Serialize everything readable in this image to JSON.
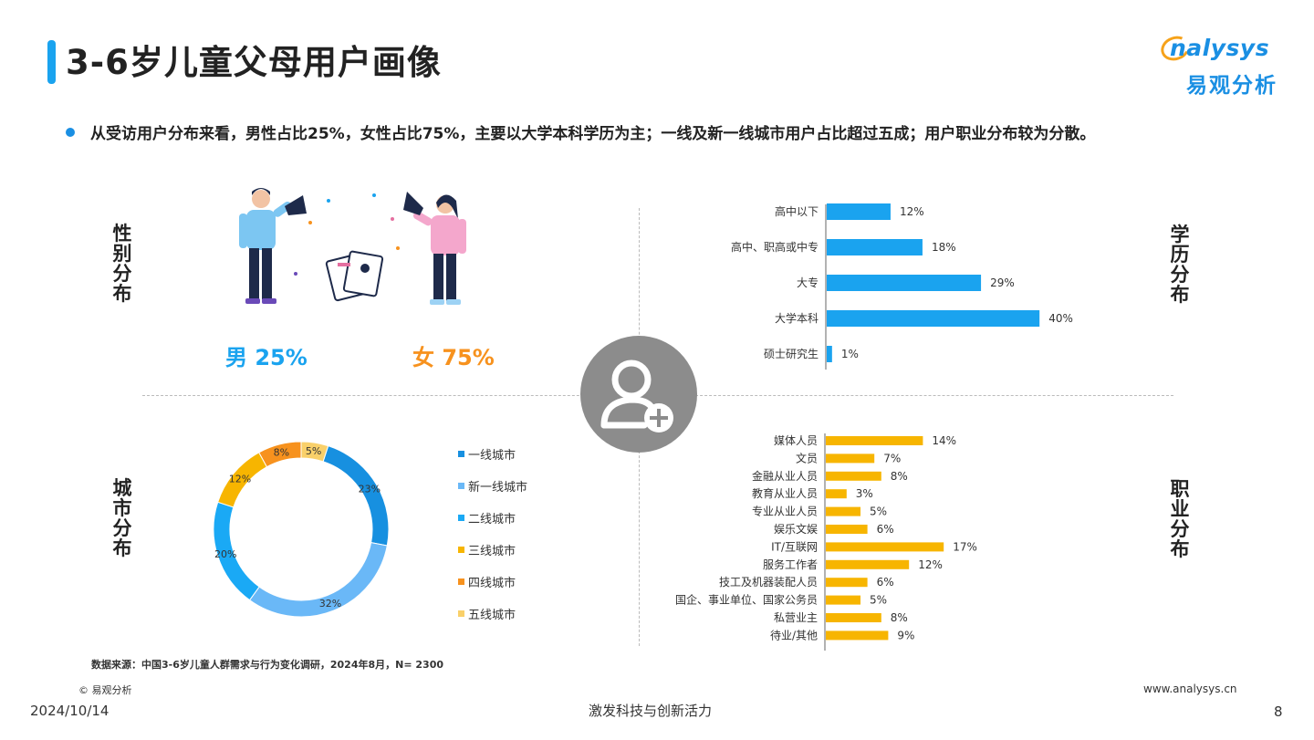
{
  "header": {
    "title": "3-6岁儿童父母用户画像",
    "logo_en": "nalysys",
    "logo_cn": "易观分析"
  },
  "summary": {
    "text": "从受访用户分布来看，男性占比25%，女性占比75%，主要以大学本科学历为主；一线及新一线城市用户占比超过五成；用户职业分布较为分散。"
  },
  "sections": {
    "gender": "性别分布",
    "education": "学历分布",
    "city": "城市分布",
    "occupation": "职业分布"
  },
  "gender_labels": {
    "male": "男  25%",
    "female": "女  75%"
  },
  "colors": {
    "accent_blue": "#1aa3ef",
    "accent_orange": "#f7921e",
    "bar_yellow": "#f7b500",
    "center_gray": "#8c8c8c"
  },
  "chart_data": [
    {
      "type": "bar",
      "orientation": "horizontal",
      "categories": [
        "高中以下",
        "高中、职高或中专",
        "大专",
        "大学本科",
        "硕士研究生"
      ],
      "values": [
        12,
        18,
        29,
        40,
        1
      ],
      "value_labels": [
        "12%",
        "18%",
        "29%",
        "40%",
        "1%"
      ],
      "color": "#1aa3ef"
    },
    {
      "type": "pie",
      "donut": true,
      "categories": [
        "一线城市",
        "新一线城市",
        "二线城市",
        "三线城市",
        "四线城市",
        "五线城市"
      ],
      "values": [
        23,
        32,
        20,
        12,
        8,
        5
      ],
      "value_labels": [
        "23%",
        "32%",
        "20%",
        "12%",
        "8%",
        "5%"
      ],
      "colors": [
        "#1790e0",
        "#6ab8f7",
        "#1aa9f5",
        "#f7b500",
        "#f7921e",
        "#f9d06a"
      ],
      "legend_position": "right"
    },
    {
      "type": "bar",
      "orientation": "horizontal",
      "categories": [
        "媒体人员",
        "文员",
        "金融从业人员",
        "教育从业人员",
        "专业从业人员",
        "娱乐文娱",
        "IT/互联网",
        "服务工作者",
        "技工及机器装配人员",
        "国企、事业单位、国家公务员",
        "私营业主",
        "待业/其他"
      ],
      "values": [
        14,
        7,
        8,
        3,
        5,
        6,
        17,
        12,
        6,
        5,
        8,
        9
      ],
      "value_labels": [
        "14%",
        "7%",
        "8%",
        "3%",
        "5%",
        "6%",
        "17%",
        "12%",
        "6%",
        "5%",
        "8%",
        "9%"
      ],
      "color": "#f7b500"
    }
  ],
  "footer": {
    "source": "数据来源：中国3-6岁儿童人群需求与行为变化调研，2024年8月，N= 2300",
    "copyright": "© 易观分析",
    "website": "www.analysys.cn",
    "date": "2024/10/14",
    "slogan": "激发科技与创新活力",
    "page": "8"
  }
}
